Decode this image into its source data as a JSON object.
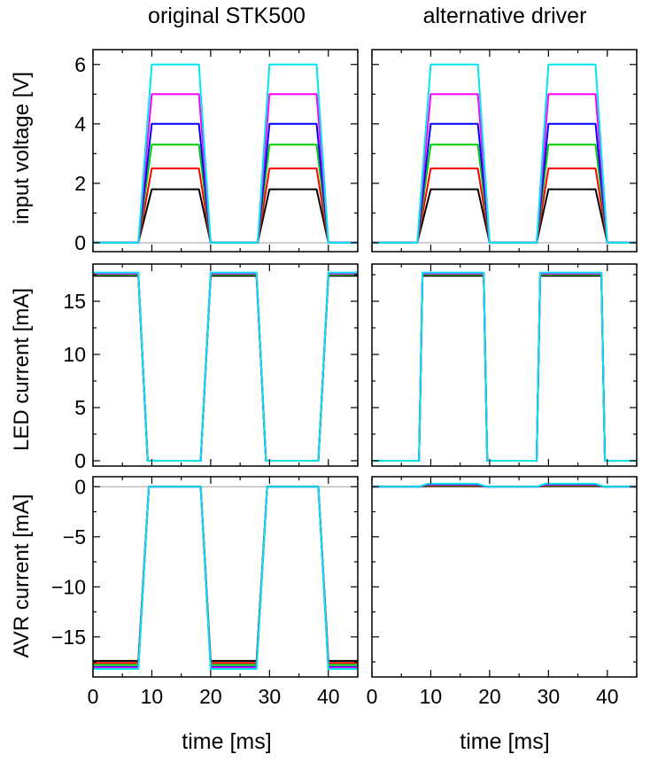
{
  "figure": {
    "column_titles": [
      "original STK500",
      "alternative driver"
    ],
    "row_ylabels": [
      "input voltage [V]",
      "LED current [mA]",
      "AVR current [mA]"
    ],
    "xlabel": "time [ms]"
  },
  "chart_data": [
    {
      "type": "line",
      "panel": "original STK500 / input voltage",
      "title": "original STK500",
      "xlabel": "",
      "ylabel": "input voltage [V]",
      "xlim": [
        0,
        45
      ],
      "ylim": [
        -0.3,
        6.5
      ],
      "xticks": [
        0,
        10,
        20,
        30,
        40
      ],
      "yticks": [
        0,
        2,
        4,
        6
      ],
      "zero_line": true,
      "series": [
        {
          "color": "#000000",
          "x": [
            0,
            7.7,
            10,
            18,
            20,
            28,
            30,
            38,
            40,
            45
          ],
          "y": [
            0,
            0,
            1.8,
            1.8,
            0,
            0,
            1.8,
            1.8,
            0,
            0
          ]
        },
        {
          "color": "#ff0000",
          "x": [
            0,
            7.7,
            10,
            18,
            20,
            28,
            30,
            38,
            40,
            45
          ],
          "y": [
            0,
            0,
            2.5,
            2.5,
            0,
            0,
            2.5,
            2.5,
            0,
            0
          ]
        },
        {
          "color": "#00cc00",
          "x": [
            0,
            7.7,
            10,
            18,
            20,
            28,
            30,
            38,
            40,
            45
          ],
          "y": [
            0,
            0,
            3.3,
            3.3,
            0,
            0,
            3.3,
            3.3,
            0,
            0
          ]
        },
        {
          "color": "#0000ff",
          "x": [
            0,
            7.7,
            10,
            18,
            20,
            28,
            30,
            38,
            40,
            45
          ],
          "y": [
            0,
            0,
            4.0,
            4.0,
            0,
            0,
            4.0,
            4.0,
            0,
            0
          ]
        },
        {
          "color": "#ff00ff",
          "x": [
            0,
            7.7,
            10,
            18,
            20,
            28,
            30,
            38,
            40,
            45
          ],
          "y": [
            0,
            0,
            5.0,
            5.0,
            0,
            0,
            5.0,
            5.0,
            0,
            0
          ]
        },
        {
          "color": "#00e5ee",
          "x": [
            0,
            7.7,
            10,
            18,
            20,
            28,
            30,
            38,
            40,
            45
          ],
          "y": [
            0,
            0,
            6.0,
            6.0,
            0,
            0,
            6.0,
            6.0,
            0,
            0
          ]
        }
      ]
    },
    {
      "type": "line",
      "panel": "alternative driver / input voltage",
      "title": "alternative driver",
      "xlabel": "",
      "ylabel": "",
      "xlim": [
        0,
        45
      ],
      "ylim": [
        -0.3,
        6.5
      ],
      "xticks": [
        0,
        10,
        20,
        30,
        40
      ],
      "yticks": [
        0,
        2,
        4,
        6
      ],
      "zero_line": true,
      "series": [
        {
          "color": "#000000",
          "x": [
            0,
            7.7,
            10,
            18,
            20,
            28,
            30,
            38,
            40,
            45
          ],
          "y": [
            0,
            0,
            1.8,
            1.8,
            0,
            0,
            1.8,
            1.8,
            0,
            0
          ]
        },
        {
          "color": "#ff0000",
          "x": [
            0,
            7.7,
            10,
            18,
            20,
            28,
            30,
            38,
            40,
            45
          ],
          "y": [
            0,
            0,
            2.5,
            2.5,
            0,
            0,
            2.5,
            2.5,
            0,
            0
          ]
        },
        {
          "color": "#00cc00",
          "x": [
            0,
            7.7,
            10,
            18,
            20,
            28,
            30,
            38,
            40,
            45
          ],
          "y": [
            0,
            0,
            3.3,
            3.3,
            0,
            0,
            3.3,
            3.3,
            0,
            0
          ]
        },
        {
          "color": "#0000ff",
          "x": [
            0,
            7.7,
            10,
            18,
            20,
            28,
            30,
            38,
            40,
            45
          ],
          "y": [
            0,
            0,
            4.0,
            4.0,
            0,
            0,
            4.0,
            4.0,
            0,
            0
          ]
        },
        {
          "color": "#ff00ff",
          "x": [
            0,
            7.7,
            10,
            18,
            20,
            28,
            30,
            38,
            40,
            45
          ],
          "y": [
            0,
            0,
            5.0,
            5.0,
            0,
            0,
            5.0,
            5.0,
            0,
            0
          ]
        },
        {
          "color": "#00e5ee",
          "x": [
            0,
            7.7,
            10,
            18,
            20,
            28,
            30,
            38,
            40,
            45
          ],
          "y": [
            0,
            0,
            6.0,
            6.0,
            0,
            0,
            6.0,
            6.0,
            0,
            0
          ]
        }
      ]
    },
    {
      "type": "line",
      "panel": "original STK500 / LED current",
      "title": "",
      "xlabel": "",
      "ylabel": "LED current [mA]",
      "xlim": [
        0,
        45
      ],
      "ylim": [
        -0.5,
        18.5
      ],
      "xticks": [
        0,
        10,
        20,
        30,
        40
      ],
      "yticks": [
        0,
        5,
        10,
        15
      ],
      "zero_line": false,
      "series": [
        {
          "color": "#000000",
          "x": [
            0,
            7.7,
            9.3,
            18.3,
            20,
            27.8,
            29.4,
            38.3,
            40,
            45
          ],
          "y": [
            17.4,
            17.4,
            0,
            0,
            17.4,
            17.4,
            0,
            0,
            17.4,
            17.4
          ]
        },
        {
          "color": "#ff0000",
          "x": [
            0,
            7.7,
            9.3,
            18.3,
            20,
            27.8,
            29.4,
            38.3,
            40,
            45
          ],
          "y": [
            17.5,
            17.5,
            0,
            0,
            17.5,
            17.5,
            0,
            0,
            17.5,
            17.5
          ]
        },
        {
          "color": "#00cc00",
          "x": [
            0,
            7.7,
            9.3,
            18.3,
            20,
            27.8,
            29.4,
            38.3,
            40,
            45
          ],
          "y": [
            17.5,
            17.5,
            0,
            0,
            17.5,
            17.5,
            0,
            0,
            17.5,
            17.5
          ]
        },
        {
          "color": "#0000ff",
          "x": [
            0,
            7.7,
            9.3,
            18.3,
            20,
            27.8,
            29.4,
            38.3,
            40,
            45
          ],
          "y": [
            17.6,
            17.6,
            0,
            0,
            17.6,
            17.6,
            0,
            0,
            17.6,
            17.6
          ]
        },
        {
          "color": "#ff00ff",
          "x": [
            0,
            7.7,
            9.3,
            18.3,
            20,
            27.8,
            29.4,
            38.3,
            40,
            45
          ],
          "y": [
            17.6,
            17.6,
            0,
            0,
            17.6,
            17.6,
            0,
            0,
            17.6,
            17.6
          ]
        },
        {
          "color": "#00e5ee",
          "x": [
            0,
            7.7,
            9.3,
            18.3,
            20,
            27.8,
            29.4,
            38.3,
            40,
            45
          ],
          "y": [
            17.7,
            17.7,
            0,
            0,
            17.7,
            17.7,
            0,
            0,
            17.7,
            17.7
          ]
        }
      ]
    },
    {
      "type": "line",
      "panel": "alternative driver / LED current",
      "title": "",
      "xlabel": "",
      "ylabel": "",
      "xlim": [
        0,
        45
      ],
      "ylim": [
        -0.5,
        18.5
      ],
      "xticks": [
        0,
        10,
        20,
        30,
        40
      ],
      "yticks": [
        0,
        5,
        10,
        15
      ],
      "zero_line": false,
      "series": [
        {
          "color": "#000000",
          "x": [
            0,
            8,
            8.6,
            19,
            19.6,
            28,
            28.6,
            39,
            39.6,
            45
          ],
          "y": [
            0,
            0,
            17.4,
            17.4,
            0,
            0,
            17.4,
            17.4,
            0,
            0
          ]
        },
        {
          "color": "#ff0000",
          "x": [
            0,
            8,
            8.6,
            19,
            19.6,
            28,
            28.6,
            39,
            39.6,
            45
          ],
          "y": [
            0,
            0,
            17.5,
            17.5,
            0,
            0,
            17.5,
            17.5,
            0,
            0
          ]
        },
        {
          "color": "#00cc00",
          "x": [
            0,
            8,
            8.6,
            19,
            19.6,
            28,
            28.6,
            39,
            39.6,
            45
          ],
          "y": [
            0,
            0,
            17.5,
            17.5,
            0,
            0,
            17.5,
            17.5,
            0,
            0
          ]
        },
        {
          "color": "#0000ff",
          "x": [
            0,
            8,
            8.6,
            19,
            19.6,
            28,
            28.6,
            39,
            39.6,
            45
          ],
          "y": [
            0,
            0,
            17.6,
            17.6,
            0,
            0,
            17.6,
            17.6,
            0,
            0
          ]
        },
        {
          "color": "#ff00ff",
          "x": [
            0,
            8,
            8.6,
            19,
            19.6,
            28,
            28.6,
            39,
            39.6,
            45
          ],
          "y": [
            0,
            0,
            17.6,
            17.6,
            0,
            0,
            17.6,
            17.6,
            0,
            0
          ]
        },
        {
          "color": "#00e5ee",
          "x": [
            0,
            8,
            8.6,
            19,
            19.6,
            28,
            28.6,
            39,
            39.6,
            45
          ],
          "y": [
            0,
            0,
            17.7,
            17.7,
            0,
            0,
            17.7,
            17.7,
            0,
            0
          ]
        }
      ]
    },
    {
      "type": "line",
      "panel": "original STK500 / AVR current",
      "title": "",
      "xlabel": "time [ms]",
      "ylabel": "AVR current [mA]",
      "xlim": [
        0,
        45
      ],
      "ylim": [
        -19,
        1
      ],
      "xticks": [
        0,
        10,
        20,
        30,
        40
      ],
      "yticks": [
        0,
        -5,
        -10,
        -15
      ],
      "zero_line": true,
      "series": [
        {
          "color": "#000000",
          "x": [
            0,
            7.7,
            9.5,
            18.3,
            20,
            27.8,
            29.6,
            38.3,
            40,
            45
          ],
          "y": [
            -17.4,
            -17.4,
            0,
            0,
            -17.4,
            -17.4,
            0,
            0,
            -17.4,
            -17.4
          ]
        },
        {
          "color": "#ff0000",
          "x": [
            0,
            7.7,
            9.5,
            18.3,
            20,
            27.8,
            29.6,
            38.3,
            40,
            45
          ],
          "y": [
            -17.6,
            -17.6,
            0,
            0,
            -17.6,
            -17.6,
            0,
            0,
            -17.6,
            -17.6
          ]
        },
        {
          "color": "#00cc00",
          "x": [
            0,
            7.7,
            9.5,
            18.3,
            20,
            27.8,
            29.6,
            38.3,
            40,
            45
          ],
          "y": [
            -17.8,
            -17.8,
            0,
            0,
            -17.8,
            -17.8,
            0,
            0,
            -17.8,
            -17.8
          ]
        },
        {
          "color": "#0000ff",
          "x": [
            0,
            7.7,
            9.5,
            18.3,
            20,
            27.8,
            29.6,
            38.3,
            40,
            45
          ],
          "y": [
            -18.0,
            -18.0,
            0,
            0,
            -18.0,
            -18.0,
            0,
            0,
            -18.0,
            -18.0
          ]
        },
        {
          "color": "#ff00ff",
          "x": [
            0,
            7.7,
            9.5,
            18.3,
            20,
            27.8,
            29.6,
            38.3,
            40,
            45
          ],
          "y": [
            -18.1,
            -18.1,
            0,
            0,
            -18.1,
            -18.1,
            0,
            0,
            -18.1,
            -18.1
          ]
        },
        {
          "color": "#00e5ee",
          "x": [
            0,
            7.7,
            9.5,
            18.3,
            20,
            27.8,
            29.6,
            38.3,
            40,
            45
          ],
          "y": [
            -18.2,
            -18.2,
            0,
            0,
            -18.2,
            -18.2,
            0,
            0,
            -18.2,
            -18.2
          ]
        }
      ]
    },
    {
      "type": "line",
      "panel": "alternative driver / AVR current",
      "title": "",
      "xlabel": "time [ms]",
      "ylabel": "",
      "xlim": [
        0,
        45
      ],
      "ylim": [
        -19,
        1
      ],
      "xticks": [
        0,
        10,
        20,
        30,
        40
      ],
      "yticks": [
        0,
        -5,
        -10,
        -15
      ],
      "zero_line": true,
      "series": [
        {
          "color": "#000000",
          "x": [
            0,
            8,
            9.5,
            18,
            19.5,
            28,
            29.5,
            38,
            39.5,
            45
          ],
          "y": [
            0,
            0,
            0.05,
            0.05,
            0,
            0,
            0.05,
            0.05,
            0,
            0
          ]
        },
        {
          "color": "#ff0000",
          "x": [
            0,
            8,
            9.5,
            18,
            19.5,
            28,
            29.5,
            38,
            39.5,
            45
          ],
          "y": [
            0,
            0,
            0.1,
            0.1,
            0,
            0,
            0.1,
            0.1,
            0,
            0
          ]
        },
        {
          "color": "#00cc00",
          "x": [
            0,
            8,
            9.5,
            18,
            19.5,
            28,
            29.5,
            38,
            39.5,
            45
          ],
          "y": [
            0,
            0,
            0.15,
            0.15,
            0,
            0,
            0.15,
            0.15,
            0,
            0
          ]
        },
        {
          "color": "#0000ff",
          "x": [
            0,
            8,
            9.5,
            18,
            19.5,
            28,
            29.5,
            38,
            39.5,
            45
          ],
          "y": [
            0,
            0,
            0.2,
            0.2,
            0,
            0,
            0.2,
            0.2,
            0,
            0
          ]
        },
        {
          "color": "#ff00ff",
          "x": [
            0,
            8,
            9.5,
            18,
            19.5,
            28,
            29.5,
            38,
            39.5,
            45
          ],
          "y": [
            0,
            0,
            0.25,
            0.25,
            0,
            0,
            0.25,
            0.25,
            0,
            0
          ]
        },
        {
          "color": "#00e5ee",
          "x": [
            0,
            8,
            9.5,
            18,
            19.5,
            28,
            29.5,
            38,
            39.5,
            45
          ],
          "y": [
            0,
            0,
            0.3,
            0.3,
            0,
            0,
            0.3,
            0.3,
            0,
            0
          ]
        }
      ]
    }
  ]
}
